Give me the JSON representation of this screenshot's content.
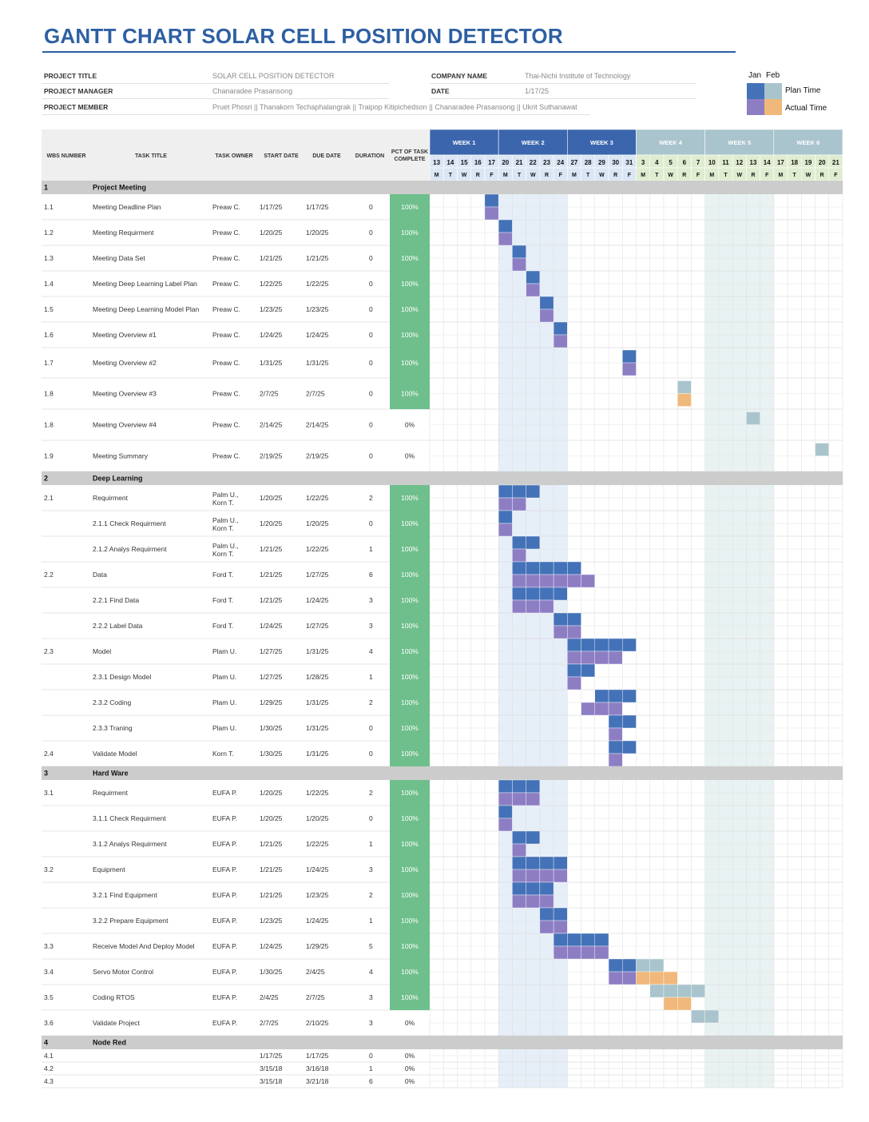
{
  "title": "GANTT CHART SOLAR CELL POSITION DETECTOR",
  "info": {
    "project_title_label": "PROJECT TITLE",
    "project_title": "SOLAR CELL POSITION DETECTOR",
    "project_manager_label": "PROJECT MANAGER",
    "project_manager": "Chanaradee Prasansong",
    "project_member_label": "PROJECT MEMBER",
    "project_member": "Pruet Phosri || Thanakorn Techaphalangrak || Traipop Kitipichedson || Chanaradee Prasansong || Ukrit Suthanawat",
    "company_label": "COMPANY NAME",
    "company": "Thai-Nichi Institute of Technology",
    "date_label": "DATE",
    "date": "1/17/25"
  },
  "legend": {
    "jan": "Jan",
    "feb": "Feb",
    "plan": "Plan Time",
    "actual": "Actual Time",
    "colors": {
      "plan_jan": "#4472b8",
      "plan_feb": "#a9c4cc",
      "actual_jan": "#8d7ec4",
      "actual_feb": "#f0b87a"
    }
  },
  "colors": {
    "header_blue": "#3b66ad",
    "header_teal": "#a9c4cc",
    "day_jan": "#dbe6f4",
    "day_feb": "#e0ecd0",
    "section_gray": "#cccccc",
    "pct_green": "#6fbf8c",
    "week_jan_band": "#e6eef8",
    "week_feb_band": "#e9f2f2"
  },
  "chart_data": {
    "type": "gantt",
    "columns": [
      "WBS NUMBER",
      "TASK TITLE",
      "TASK OWNER",
      "START DATE",
      "DUE DATE",
      "DURATION",
      "PCT OF TASK COMPLETE"
    ],
    "weeks": [
      "WEEK 1",
      "WEEK 2",
      "WEEK 3",
      "WEEK 4",
      "WEEK 5",
      "WEEK 6"
    ],
    "days": [
      "13",
      "14",
      "15",
      "16",
      "17",
      "20",
      "21",
      "22",
      "23",
      "24",
      "27",
      "28",
      "29",
      "30",
      "31",
      "3",
      "4",
      "5",
      "6",
      "7",
      "10",
      "11",
      "12",
      "13",
      "14",
      "17",
      "18",
      "19",
      "20",
      "21"
    ],
    "weekdays": [
      "M",
      "T",
      "W",
      "R",
      "F",
      "M",
      "T",
      "W",
      "R",
      "F",
      "M",
      "T",
      "W",
      "R",
      "F",
      "M",
      "T",
      "W",
      "R",
      "F",
      "M",
      "T",
      "W",
      "R",
      "F",
      "M",
      "T",
      "W",
      "R",
      "F"
    ],
    "rows": [
      {
        "kind": "section",
        "wbs": "1",
        "title": "Project Meeting"
      },
      {
        "wbs": "1.1",
        "title": "Meeting Deadline Plan",
        "owner": "Preaw C.",
        "start": "1/17/25",
        "due": "1/17/25",
        "duration": "0",
        "pct": "100%",
        "plan": [
          4,
          4
        ],
        "actual": [
          4,
          4
        ]
      },
      {
        "wbs": "1.2",
        "title": "Meeting Requirment",
        "owner": "Preaw C.",
        "start": "1/20/25",
        "due": "1/20/25",
        "duration": "0",
        "pct": "100%",
        "plan": [
          5,
          5
        ],
        "actual": [
          5,
          5
        ]
      },
      {
        "wbs": "1.3",
        "title": "Meeting Data Set",
        "owner": "Preaw C.",
        "start": "1/21/25",
        "due": "1/21/25",
        "duration": "0",
        "pct": "100%",
        "plan": [
          6,
          6
        ],
        "actual": [
          6,
          6
        ]
      },
      {
        "wbs": "1.4",
        "title": "Meeting Deep Learning Label Plan",
        "owner": "Preaw C.",
        "start": "1/22/25",
        "due": "1/22/25",
        "duration": "0",
        "pct": "100%",
        "plan": [
          7,
          7
        ],
        "actual": [
          7,
          7
        ]
      },
      {
        "wbs": "1.5",
        "title": "Meeting Deep Learning Model Plan",
        "owner": "Preaw C.",
        "start": "1/23/25",
        "due": "1/23/25",
        "duration": "0",
        "pct": "100%",
        "plan": [
          8,
          8
        ],
        "actual": [
          8,
          8
        ]
      },
      {
        "wbs": "1.6",
        "title": "Meeting Overview #1",
        "owner": "Preaw C.",
        "start": "1/24/25",
        "due": "1/24/25",
        "duration": "0",
        "pct": "100%",
        "plan": [
          9,
          9
        ],
        "actual": [
          9,
          9
        ]
      },
      {
        "wbs": "1.7",
        "title": "Meeting Overview #2",
        "owner": "Preaw C.",
        "start": "1/31/25",
        "due": "1/31/25",
        "duration": "0",
        "pct": "100%",
        "plan": [
          14,
          14
        ],
        "actual": [
          14,
          14
        ]
      },
      {
        "wbs": "1.8",
        "title": "Meeting Overview #3",
        "owner": "Preaw C.",
        "start": "2/7/25",
        "due": "2/7/25",
        "duration": "0",
        "pct": "100%",
        "plan": [
          18,
          18
        ],
        "actual": [
          18,
          18
        ]
      },
      {
        "wbs": "1.8",
        "title": "Meeting Overview #4",
        "owner": "Preaw C.",
        "start": "2/14/25",
        "due": "2/14/25",
        "duration": "0",
        "pct": "0%",
        "plan": [
          23,
          23
        ],
        "actual": null
      },
      {
        "wbs": "1.9",
        "title": "Meeting Summary",
        "owner": "Preaw C.",
        "start": "2/19/25",
        "due": "2/19/25",
        "duration": "0",
        "pct": "0%",
        "plan": [
          28,
          28
        ],
        "actual": null
      },
      {
        "kind": "section",
        "wbs": "2",
        "title": "Deep Learning"
      },
      {
        "wbs": "2.1",
        "title": "Requirment",
        "owner": "Palm U.,",
        "owner2": "Korn T.",
        "start": "1/20/25",
        "due": "1/22/25",
        "duration": "2",
        "pct": "100%",
        "plan": [
          5,
          7
        ],
        "actual": [
          5,
          6
        ]
      },
      {
        "wbs": "",
        "title": "2.1.1 Check Requirment",
        "owner": "Palm U.,",
        "owner2": "Korn T.",
        "start": "1/20/25",
        "due": "1/20/25",
        "duration": "0",
        "pct": "100%",
        "plan": [
          5,
          5
        ],
        "actual": [
          5,
          5
        ]
      },
      {
        "wbs": "",
        "title": "2.1.2 Analys Requirment",
        "owner": "Palm U.,",
        "owner2": "Korn T.",
        "start": "1/21/25",
        "due": "1/22/25",
        "duration": "1",
        "pct": "100%",
        "plan": [
          6,
          7
        ],
        "actual": [
          6,
          6
        ]
      },
      {
        "wbs": "2.2",
        "title": "Data",
        "owner": "Ford T.",
        "start": "1/21/25",
        "due": "1/27/25",
        "duration": "6",
        "pct": "100%",
        "plan": [
          6,
          10
        ],
        "actual": [
          6,
          11
        ]
      },
      {
        "wbs": "",
        "title": "2.2.1 Find Data",
        "owner": "Ford T.",
        "start": "1/21/25",
        "due": "1/24/25",
        "duration": "3",
        "pct": "100%",
        "plan": [
          6,
          9
        ],
        "actual": [
          6,
          8
        ]
      },
      {
        "wbs": "",
        "title": "2.2.2 Label Data",
        "owner": "Ford T.",
        "start": "1/24/25",
        "due": "1/27/25",
        "duration": "3",
        "pct": "100%",
        "plan": [
          9,
          10
        ],
        "actual": [
          9,
          10
        ]
      },
      {
        "wbs": "2.3",
        "title": "Model",
        "owner": "Plam U.",
        "start": "1/27/25",
        "due": "1/31/25",
        "duration": "4",
        "pct": "100%",
        "plan": [
          10,
          14
        ],
        "actual": [
          10,
          13
        ]
      },
      {
        "wbs": "",
        "title": "2.3.1 Design Model",
        "owner": "Plam U.",
        "start": "1/27/25",
        "due": "1/28/25",
        "duration": "1",
        "pct": "100%",
        "plan": [
          10,
          11
        ],
        "actual": [
          10,
          10
        ]
      },
      {
        "wbs": "",
        "title": "2.3.2 Coding",
        "owner": "Plam U.",
        "start": "1/29/25",
        "due": "1/31/25",
        "duration": "2",
        "pct": "100%",
        "plan": [
          12,
          14
        ],
        "actual": [
          11,
          13
        ]
      },
      {
        "wbs": "",
        "title": "2.3.3 Traning",
        "owner": "Plam U.",
        "start": "1/30/25",
        "due": "1/31/25",
        "duration": "0",
        "pct": "100%",
        "plan": [
          13,
          14
        ],
        "actual": [
          13,
          13
        ]
      },
      {
        "wbs": "2.4",
        "title": "Validate Model",
        "owner": "Korn T.",
        "start": "1/30/25",
        "due": "1/31/25",
        "duration": "0",
        "pct": "100%",
        "plan": [
          13,
          14
        ],
        "actual": [
          13,
          13
        ]
      },
      {
        "kind": "section",
        "wbs": "3",
        "title": "Hard Ware"
      },
      {
        "wbs": "3.1",
        "title": "Requirment",
        "owner": "EUFA P.",
        "start": "1/20/25",
        "due": "1/22/25",
        "duration": "2",
        "pct": "100%",
        "plan": [
          5,
          7
        ],
        "actual": [
          5,
          7
        ]
      },
      {
        "wbs": "",
        "title": "3.1.1 Check Requirment",
        "owner": "EUFA P.",
        "start": "1/20/25",
        "due": "1/20/25",
        "duration": "0",
        "pct": "100%",
        "plan": [
          5,
          5
        ],
        "actual": [
          5,
          5
        ]
      },
      {
        "wbs": "",
        "title": "3.1.2 Analys Requirment",
        "owner": "EUFA P.",
        "start": "1/21/25",
        "due": "1/22/25",
        "duration": "1",
        "pct": "100%",
        "plan": [
          6,
          7
        ],
        "actual": [
          6,
          6
        ]
      },
      {
        "wbs": "3.2",
        "title": "Equipment",
        "owner": "EUFA P.",
        "start": "1/21/25",
        "due": "1/24/25",
        "duration": "3",
        "pct": "100%",
        "plan": [
          6,
          9
        ],
        "actual": [
          6,
          9
        ]
      },
      {
        "wbs": "",
        "title": "3.2.1 Find Equipment",
        "owner": "EUFA P.",
        "start": "1/21/25",
        "due": "1/23/25",
        "duration": "2",
        "pct": "100%",
        "plan": [
          6,
          8
        ],
        "actual": [
          6,
          8
        ]
      },
      {
        "wbs": "",
        "title": "3.2.2 Prepare Equipment",
        "owner": "EUFA P.",
        "start": "1/23/25",
        "due": "1/24/25",
        "duration": "1",
        "pct": "100%",
        "plan": [
          8,
          9
        ],
        "actual": [
          8,
          9
        ]
      },
      {
        "wbs": "3.3",
        "title": "Receive Model And Deploy Model",
        "owner": "EUFA P.",
        "start": "1/24/25",
        "due": "1/29/25",
        "duration": "5",
        "pct": "100%",
        "plan": [
          9,
          12
        ],
        "actual": [
          9,
          12
        ]
      },
      {
        "wbs": "3.4",
        "title": "Servo Motor Control",
        "owner": "EUFA P.",
        "start": "1/30/25",
        "due": "2/4/25",
        "duration": "4",
        "pct": "100%",
        "plan": [
          13,
          16
        ],
        "actual": [
          13,
          17
        ]
      },
      {
        "wbs": "3.5",
        "title": "Coding RTOS",
        "owner": "EUFA P.",
        "start": "2/4/25",
        "due": "2/7/25",
        "duration": "3",
        "pct": "100%",
        "plan": [
          16,
          19
        ],
        "actual": [
          17,
          18
        ]
      },
      {
        "wbs": "3.6",
        "title": "Validate Project",
        "owner": "EUFA P.",
        "start": "2/7/25",
        "due": "2/10/25",
        "duration": "3",
        "pct": "0%",
        "plan": [
          19,
          20
        ],
        "actual": null
      },
      {
        "kind": "section",
        "wbs": "4",
        "title": "Node Red"
      },
      {
        "wbs": "4.1",
        "title": "",
        "owner": "",
        "start": "1/17/25",
        "due": "1/17/25",
        "duration": "0",
        "pct": "0%",
        "plan": null,
        "actual": null
      },
      {
        "wbs": "4.2",
        "title": "",
        "owner": "",
        "start": "3/15/18",
        "due": "3/16/18",
        "duration": "1",
        "pct": "0%",
        "plan": null,
        "actual": null
      },
      {
        "wbs": "4.3",
        "title": "",
        "owner": "",
        "start": "3/15/18",
        "due": "3/21/18",
        "duration": "6",
        "pct": "0%",
        "plan": null,
        "actual": null
      }
    ]
  }
}
